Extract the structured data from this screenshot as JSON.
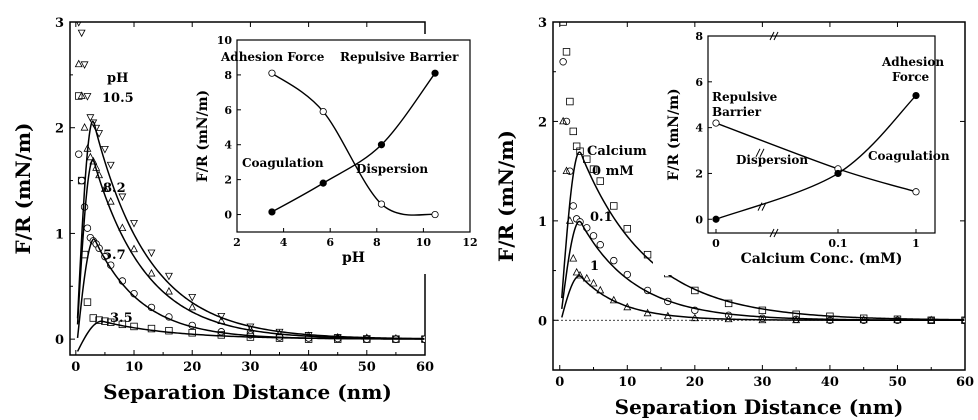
{
  "chart_data": [
    {
      "type": "scatter",
      "xlabel": "Separation Distance (nm)",
      "ylabel": "F/R (mN/m)",
      "xlim": [
        -1,
        60
      ],
      "ylim": [
        -0.15,
        3
      ],
      "xticks": [
        "0",
        "10",
        "20",
        "30",
        "40",
        "50",
        "60"
      ],
      "yticks": [
        "0",
        "1",
        "2",
        "3"
      ],
      "legend_title": "pH",
      "series": [
        {
          "name": "10.5",
          "marker": "triangle-down",
          "x": [
            0.5,
            1,
            1.5,
            2,
            2.5,
            3,
            3.5,
            4,
            5,
            6,
            8,
            10,
            13,
            16,
            20,
            25,
            30,
            35,
            40,
            45,
            50,
            55,
            60
          ],
          "y": [
            3.0,
            2.9,
            2.6,
            2.3,
            2.1,
            2.05,
            2.0,
            1.95,
            1.8,
            1.65,
            1.35,
            1.1,
            0.82,
            0.6,
            0.4,
            0.22,
            0.12,
            0.07,
            0.04,
            0.02,
            0.01,
            0.005,
            0.0
          ]
        },
        {
          "name": "8.2",
          "marker": "triangle",
          "x": [
            0.5,
            1,
            1.5,
            2,
            2.5,
            3,
            3.5,
            4,
            5,
            6,
            8,
            10,
            13,
            16,
            20,
            25,
            30,
            35,
            40,
            45,
            50,
            55,
            60
          ],
          "y": [
            2.6,
            2.3,
            2.0,
            1.8,
            1.72,
            1.68,
            1.62,
            1.55,
            1.42,
            1.3,
            1.05,
            0.85,
            0.62,
            0.45,
            0.3,
            0.17,
            0.09,
            0.05,
            0.03,
            0.015,
            0.01,
            0.005,
            0.0
          ]
        },
        {
          "name": "5.7",
          "marker": "circle",
          "x": [
            0.5,
            1,
            1.5,
            2,
            2.5,
            3,
            3.5,
            4,
            5,
            6,
            8,
            10,
            13,
            16,
            20,
            25,
            30,
            35,
            40,
            45,
            50,
            55,
            60
          ],
          "y": [
            1.75,
            1.5,
            1.25,
            1.05,
            0.96,
            0.93,
            0.9,
            0.86,
            0.78,
            0.7,
            0.55,
            0.43,
            0.3,
            0.21,
            0.13,
            0.07,
            0.04,
            0.02,
            0.01,
            0.005,
            0.0,
            0.0,
            0.0
          ]
        },
        {
          "name": "3.5",
          "marker": "square",
          "x": [
            0.5,
            1,
            1.5,
            2,
            3,
            4,
            5,
            6,
            8,
            10,
            13,
            16,
            20,
            25,
            30,
            35,
            40,
            45,
            50,
            55,
            60
          ],
          "y": [
            2.3,
            1.5,
            0.8,
            0.35,
            0.2,
            0.18,
            0.17,
            0.16,
            0.14,
            0.12,
            0.1,
            0.08,
            0.06,
            0.04,
            0.02,
            0.01,
            0.0,
            0.0,
            0.0,
            0.0,
            0.0
          ]
        }
      ],
      "fits": [
        {
          "name": "10.5",
          "y0": -0.15,
          "peak_x": 3,
          "peak_y": 2.07,
          "decay_nm": 9.5
        },
        {
          "name": "8.2",
          "y0": -0.15,
          "peak_x": 3,
          "peak_y": 1.7,
          "decay_nm": 9.0
        },
        {
          "name": "5.7",
          "y0": -0.15,
          "peak_x": 3.2,
          "peak_y": 0.95,
          "decay_nm": 8.0
        },
        {
          "name": "3.5",
          "y0": -0.15,
          "peak_x": 4.5,
          "peak_y": 0.17,
          "decay_nm": 12.0
        }
      ],
      "inset": {
        "type": "line",
        "xlabel": "pH",
        "ylabel": "F/R (mN/m)",
        "xlim": [
          2,
          12
        ],
        "ylim": [
          -1,
          10
        ],
        "xticks": [
          "2",
          "4",
          "6",
          "8",
          "10",
          "12"
        ],
        "yticks": [
          "0",
          "2",
          "4",
          "6",
          "8",
          "10"
        ],
        "annotations": [
          "Adhesion Force",
          "Repulsive Barrier",
          "Coagulation",
          "Dispersion"
        ],
        "series": [
          {
            "name": "Adhesion Force",
            "marker": "open-circle",
            "x": [
              3.5,
              5.7,
              8.2,
              10.5
            ],
            "y": [
              8.1,
              5.9,
              0.6,
              0.0
            ]
          },
          {
            "name": "Repulsive Barrier",
            "marker": "filled-circle",
            "x": [
              3.5,
              5.7,
              8.2,
              10.5
            ],
            "y": [
              0.15,
              1.8,
              4.0,
              8.1
            ]
          }
        ]
      }
    },
    {
      "type": "scatter",
      "xlabel": "Separation Distance (nm)",
      "ylabel": "F/R (mN/m)",
      "xlim": [
        -1,
        60
      ],
      "ylim": [
        -0.5,
        3
      ],
      "xticks": [
        "0",
        "10",
        "20",
        "30",
        "40",
        "50",
        "60"
      ],
      "yticks": [
        "0",
        "1",
        "2",
        "3"
      ],
      "legend_title": "Calcium",
      "legend_unit": "0 mM",
      "series": [
        {
          "name": "0 mM",
          "marker": "square",
          "x": [
            0.5,
            1,
            1.5,
            2,
            2.5,
            3,
            4,
            5,
            6,
            8,
            10,
            13,
            16,
            20,
            25,
            30,
            35,
            40,
            45,
            50,
            55,
            60
          ],
          "y": [
            3.0,
            2.7,
            2.2,
            1.9,
            1.75,
            1.7,
            1.62,
            1.52,
            1.4,
            1.15,
            0.92,
            0.66,
            0.47,
            0.3,
            0.17,
            0.1,
            0.06,
            0.04,
            0.02,
            0.01,
            0.0,
            0.0
          ]
        },
        {
          "name": "0.1",
          "marker": "circle",
          "x": [
            0.5,
            1,
            1.5,
            2,
            2.5,
            3,
            4,
            5,
            6,
            8,
            10,
            13,
            16,
            20,
            25,
            30,
            35,
            40,
            45,
            50,
            55,
            60
          ],
          "y": [
            2.6,
            2.0,
            1.5,
            1.15,
            1.02,
            0.99,
            0.93,
            0.85,
            0.76,
            0.6,
            0.46,
            0.3,
            0.19,
            0.1,
            0.05,
            0.02,
            0.01,
            0.0,
            0.0,
            0.0,
            0.0,
            0.0
          ]
        },
        {
          "name": "1",
          "marker": "triangle",
          "x": [
            0.5,
            1,
            1.5,
            2,
            2.5,
            3,
            4,
            5,
            6,
            8,
            10,
            13,
            16,
            20,
            25,
            30,
            35,
            40,
            45,
            50,
            55,
            60
          ],
          "y": [
            2.0,
            1.5,
            1.0,
            0.62,
            0.48,
            0.45,
            0.42,
            0.37,
            0.3,
            0.2,
            0.13,
            0.07,
            0.04,
            0.02,
            0.01,
            0.0,
            0.0,
            0.0,
            0.0,
            0.0,
            0.0,
            0.0
          ]
        }
      ],
      "fits": [
        {
          "name": "0 mM",
          "y0": -0.05,
          "peak_x": 3,
          "peak_y": 1.7,
          "decay_nm": 10.0
        },
        {
          "name": "0.1",
          "y0": -0.05,
          "peak_x": 3,
          "peak_y": 1.0,
          "decay_nm": 8.0
        },
        {
          "name": "1",
          "y0": -0.05,
          "peak_x": 3,
          "peak_y": 0.45,
          "decay_nm": 6.0
        }
      ],
      "zero_line": true,
      "inset": {
        "type": "line",
        "xlabel": "Calcium Conc. (mM)",
        "ylabel": "F/R (mN/m)",
        "ylim": [
          -0.6,
          8
        ],
        "xticks": [
          "0",
          "0.1",
          "1"
        ],
        "yticks": [
          "0",
          "2",
          "4",
          "6",
          "8"
        ],
        "annotations": [
          "Repulsive Barrier",
          "Adhesion Force",
          "Dispersion",
          "Coagulation"
        ],
        "series": [
          {
            "name": "Repulsive Barrier",
            "marker": "open-circle",
            "x": [
              "0",
              "0.1",
              "1"
            ],
            "y": [
              4.2,
              2.2,
              1.2
            ]
          },
          {
            "name": "Adhesion Force",
            "marker": "filled-circle",
            "x": [
              "0",
              "0.1",
              "1"
            ],
            "y": [
              0.0,
              2.0,
              5.4
            ]
          }
        ]
      }
    }
  ]
}
